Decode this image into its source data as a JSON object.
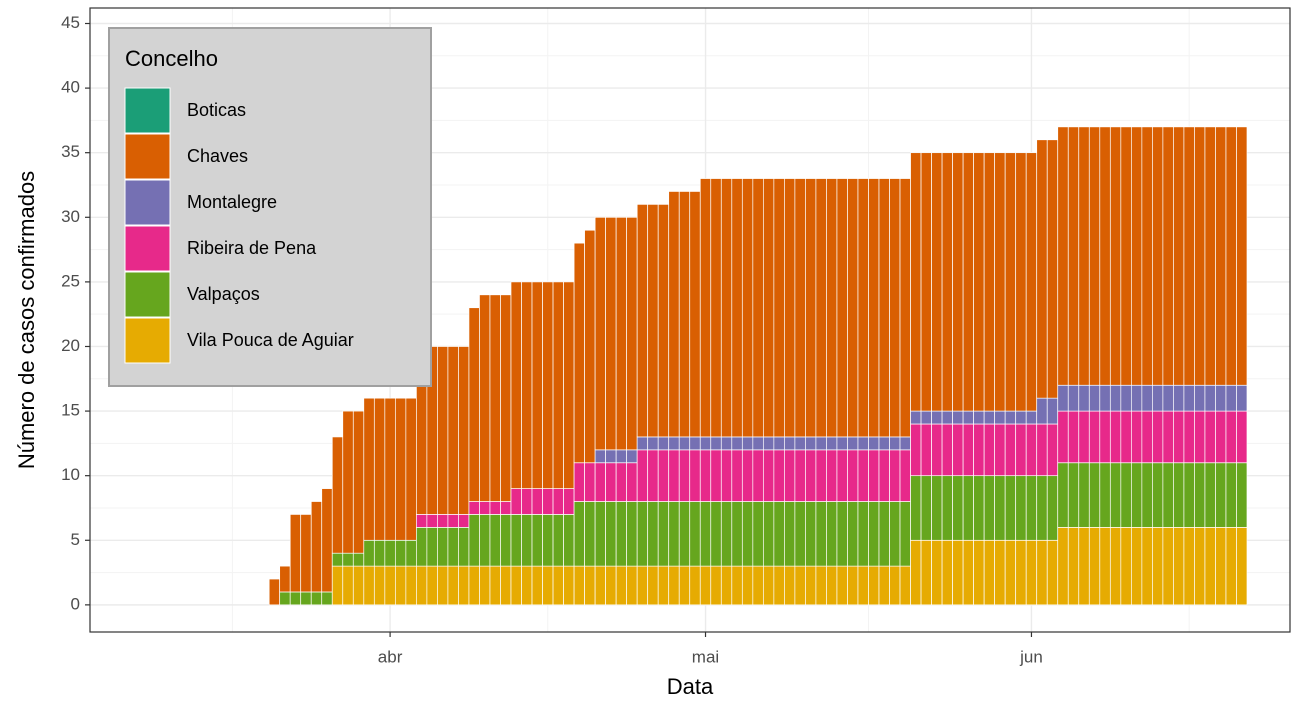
{
  "chart_data": {
    "type": "bar",
    "stacked": true,
    "xlabel": "Data",
    "ylabel": "Número de casos confirmados",
    "legend_title": "Concelho",
    "legend": "top-left",
    "grid": true,
    "ylim": [
      -2.1,
      46.2
    ],
    "yticks": [
      0,
      5,
      10,
      15,
      20,
      25,
      30,
      35,
      40,
      45
    ],
    "categories": [
      null,
      null,
      null,
      null,
      null,
      null,
      null,
      null,
      null,
      null,
      null,
      null,
      null,
      null,
      null,
      null,
      null,
      null,
      null,
      null,
      null,
      null,
      null,
      "abr",
      null,
      null,
      null,
      null,
      null,
      null,
      null,
      null,
      null,
      null,
      null,
      null,
      null,
      null,
      null,
      null,
      null,
      null,
      null,
      null,
      null,
      null,
      null,
      null,
      null,
      null,
      null,
      null,
      null,
      "mai",
      null,
      null,
      null,
      null,
      null,
      null,
      null,
      null,
      null,
      null,
      null,
      null,
      null,
      null,
      null,
      null,
      null,
      null,
      null,
      null,
      null,
      null,
      null,
      null,
      null,
      null,
      null,
      null,
      null,
      null,
      "jun",
      null,
      null,
      null,
      null,
      null,
      null,
      null,
      null,
      null,
      null,
      null,
      null,
      null,
      null,
      null,
      null,
      null,
      null,
      null,
      null
    ],
    "series": [
      {
        "name": "Boticas",
        "color": "#1b9e77",
        "values": [
          0,
          0,
          0,
          0,
          0,
          0,
          0,
          0,
          0,
          0,
          0,
          0,
          0,
          0,
          0,
          0,
          0,
          0,
          0,
          0,
          0,
          0,
          0,
          0,
          0,
          0,
          0,
          0,
          0,
          0,
          0,
          0,
          0,
          0,
          0,
          0,
          0,
          0,
          0,
          0,
          0,
          0,
          0,
          0,
          0,
          0,
          0,
          0,
          0,
          0,
          0,
          0,
          0,
          0,
          0,
          0,
          0,
          0,
          0,
          0,
          0,
          0,
          0,
          0,
          0,
          0,
          0,
          0,
          0,
          0,
          0,
          0,
          0,
          0,
          0,
          0,
          0,
          0,
          0,
          0,
          0,
          0,
          0,
          0,
          0,
          0,
          0,
          0,
          0,
          0,
          0,
          0,
          0,
          0,
          0,
          0,
          0,
          0,
          0,
          0,
          0,
          0,
          0,
          0,
          0
        ]
      },
      {
        "name": "Chaves",
        "color": "#d95f02",
        "values": [
          0,
          0,
          0,
          0,
          0,
          0,
          0,
          0,
          0,
          0,
          0,
          0,
          2,
          2,
          6,
          6,
          7,
          8,
          9,
          11,
          11,
          11,
          11,
          11,
          11,
          11,
          13,
          13,
          13,
          13,
          13,
          15,
          16,
          16,
          16,
          16,
          16,
          16,
          16,
          16,
          16,
          17,
          18,
          18,
          18,
          18,
          18,
          18,
          18,
          18,
          19,
          19,
          19,
          20,
          20,
          20,
          20,
          20,
          20,
          20,
          20,
          20,
          20,
          20,
          20,
          20,
          20,
          20,
          20,
          20,
          20,
          20,
          20,
          20,
          20,
          20,
          20,
          20,
          20,
          20,
          20,
          20,
          20,
          20,
          20,
          20,
          20,
          20,
          20,
          20,
          20,
          20,
          20,
          20,
          20,
          20,
          20,
          20,
          20,
          20,
          20,
          20,
          20,
          20,
          20
        ]
      },
      {
        "name": "Montalegre",
        "color": "#7570b3",
        "values": [
          0,
          0,
          0,
          0,
          0,
          0,
          0,
          0,
          0,
          0,
          0,
          0,
          0,
          0,
          0,
          0,
          0,
          0,
          0,
          0,
          0,
          0,
          0,
          0,
          0,
          0,
          0,
          0,
          0,
          0,
          0,
          0,
          0,
          0,
          0,
          0,
          0,
          0,
          0,
          0,
          0,
          0,
          0,
          1,
          1,
          1,
          1,
          1,
          1,
          1,
          1,
          1,
          1,
          1,
          1,
          1,
          1,
          1,
          1,
          1,
          1,
          1,
          1,
          1,
          1,
          1,
          1,
          1,
          1,
          1,
          1,
          1,
          1,
          1,
          1,
          1,
          1,
          1,
          1,
          1,
          1,
          1,
          1,
          1,
          1,
          2,
          2,
          2,
          2,
          2,
          2,
          2,
          2,
          2,
          2,
          2,
          2,
          2,
          2,
          2,
          2,
          2,
          2,
          2,
          2
        ]
      },
      {
        "name": "Ribeira de Pena",
        "color": "#e7298a",
        "values": [
          0,
          0,
          0,
          0,
          0,
          0,
          0,
          0,
          0,
          0,
          0,
          0,
          0,
          0,
          0,
          0,
          0,
          0,
          0,
          0,
          0,
          0,
          0,
          0,
          0,
          0,
          1,
          1,
          1,
          1,
          1,
          1,
          1,
          1,
          1,
          2,
          2,
          2,
          2,
          2,
          2,
          3,
          3,
          3,
          3,
          3,
          3,
          4,
          4,
          4,
          4,
          4,
          4,
          4,
          4,
          4,
          4,
          4,
          4,
          4,
          4,
          4,
          4,
          4,
          4,
          4,
          4,
          4,
          4,
          4,
          4,
          4,
          4,
          4,
          4,
          4,
          4,
          4,
          4,
          4,
          4,
          4,
          4,
          4,
          4,
          4,
          4,
          4,
          4,
          4,
          4,
          4,
          4,
          4,
          4,
          4,
          4,
          4,
          4,
          4,
          4,
          4,
          4,
          4,
          4
        ]
      },
      {
        "name": "Valpaços",
        "color": "#66a61e",
        "values": [
          0,
          0,
          0,
          0,
          0,
          0,
          0,
          0,
          0,
          0,
          0,
          0,
          0,
          1,
          1,
          1,
          1,
          1,
          1,
          1,
          1,
          2,
          2,
          2,
          2,
          2,
          3,
          3,
          3,
          3,
          3,
          4,
          4,
          4,
          4,
          4,
          4,
          4,
          4,
          4,
          4,
          5,
          5,
          5,
          5,
          5,
          5,
          5,
          5,
          5,
          5,
          5,
          5,
          5,
          5,
          5,
          5,
          5,
          5,
          5,
          5,
          5,
          5,
          5,
          5,
          5,
          5,
          5,
          5,
          5,
          5,
          5,
          5,
          5,
          5,
          5,
          5,
          5,
          5,
          5,
          5,
          5,
          5,
          5,
          5,
          5,
          5,
          5,
          5,
          5,
          5,
          5,
          5,
          5,
          5,
          5,
          5,
          5,
          5,
          5,
          5,
          5,
          5,
          5,
          5
        ]
      },
      {
        "name": "Vila Pouca de Aguiar",
        "color": "#e6ab02",
        "values": [
          0,
          0,
          0,
          0,
          0,
          0,
          0,
          0,
          0,
          0,
          0,
          0,
          0,
          0,
          0,
          0,
          0,
          0,
          3,
          3,
          3,
          3,
          3,
          3,
          3,
          3,
          3,
          3,
          3,
          3,
          3,
          3,
          3,
          3,
          3,
          3,
          3,
          3,
          3,
          3,
          3,
          3,
          3,
          3,
          3,
          3,
          3,
          3,
          3,
          3,
          3,
          3,
          3,
          3,
          3,
          3,
          3,
          3,
          3,
          3,
          3,
          3,
          3,
          3,
          3,
          3,
          3,
          3,
          3,
          3,
          3,
          3,
          3,
          5,
          5,
          5,
          5,
          5,
          5,
          5,
          5,
          5,
          5,
          5,
          5,
          5,
          5,
          6,
          6,
          6,
          6,
          6,
          6,
          6,
          6,
          6,
          6,
          6,
          6,
          6,
          6,
          6,
          6,
          6,
          6
        ]
      }
    ]
  }
}
